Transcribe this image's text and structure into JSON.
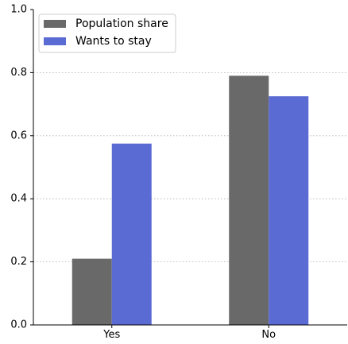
{
  "chart_data": {
    "type": "bar",
    "categories": [
      "Yes",
      "No"
    ],
    "series": [
      {
        "name": "Population share",
        "values": [
          0.21,
          0.79
        ]
      },
      {
        "name": "Wants to stay",
        "values": [
          0.575,
          0.725
        ]
      }
    ],
    "ylim": [
      0,
      1.0
    ],
    "yticks": [
      "0.0",
      "0.2",
      "0.4",
      "0.6",
      "0.8",
      "1.0"
    ],
    "grid": "y-dotted",
    "legend_position": "top-left",
    "colors": {
      "series": [
        "#696969",
        "#5b6bd4"
      ],
      "grid": "#b0b0b0"
    }
  }
}
